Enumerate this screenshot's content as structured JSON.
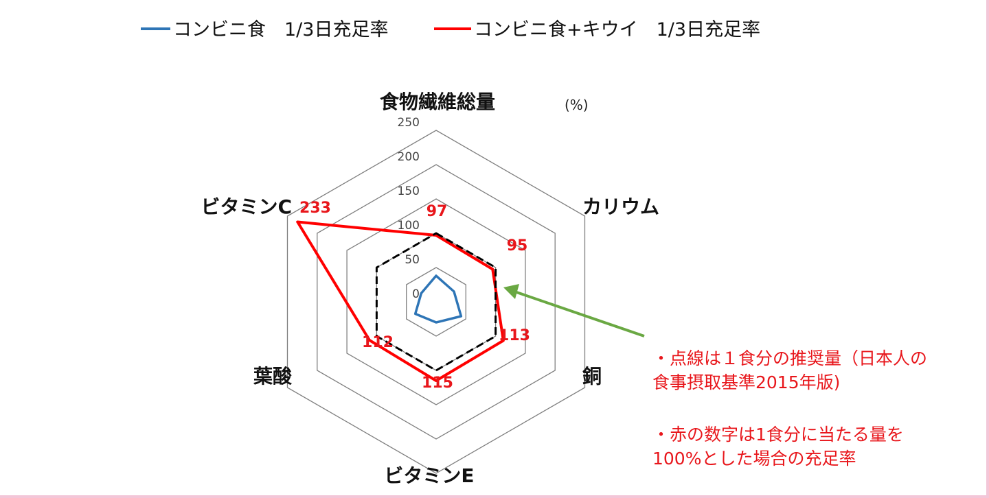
{
  "chart_data": {
    "type": "radar",
    "unit_label": "(%)",
    "axes": [
      "食物繊維総量",
      "カリウム",
      "銅",
      "ビタミンE",
      "葉酸",
      "ビタミンC"
    ],
    "scale": {
      "min": 0,
      "max": 250,
      "ticks": [
        "0",
        "50",
        "100",
        "150",
        "200",
        "250"
      ]
    },
    "grid": true,
    "legend_position": "top",
    "series": [
      {
        "name": "コンビニ食　1/3日充足率",
        "color": "#2e75b6",
        "values": [
          38,
          30,
          42,
          30,
          35,
          25
        ]
      },
      {
        "name": "コンビニ食+キウイ　1/3日充足率",
        "color": "#ff0000",
        "values": [
          97,
          95,
          113,
          115,
          112,
          233
        ]
      },
      {
        "name": "",
        "style": "dashed",
        "color": "#000000",
        "values": [
          100,
          100,
          100,
          100,
          100,
          100
        ]
      }
    ],
    "data_labels": [
      "97",
      "95",
      "113",
      "115",
      "112",
      "233"
    ],
    "label_color": "#e8161b"
  },
  "notes": [
    "・点線は１食分の推奨量（日本人の",
    "食事摂取基準2015年版)",
    "・赤の数字は1食分に当たる量を",
    "100%とした場合の充足率"
  ],
  "arrow_color": "#6aa843"
}
